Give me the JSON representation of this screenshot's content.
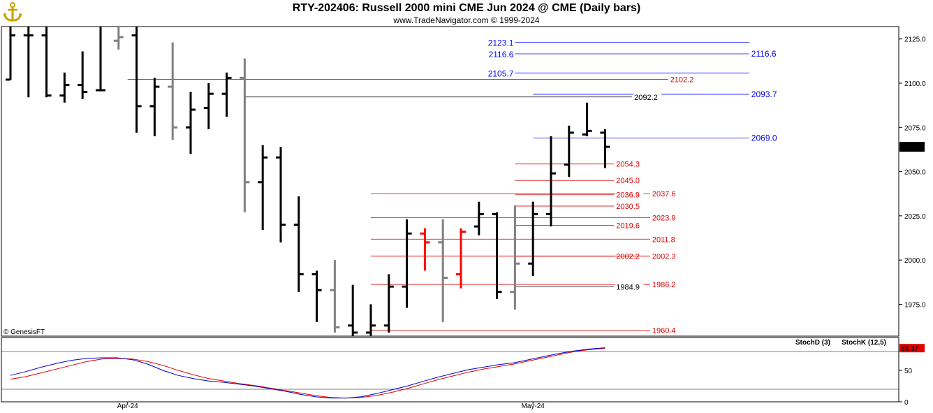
{
  "header": {
    "title": "RTY-202406:  Russell 2000 mini CME Jun 2024 @ CME  (Daily bars)",
    "subtitle": "www.TradeNavigator.com © 1999-2024"
  },
  "colors": {
    "black_bar": "#000000",
    "gray_bar": "#808080",
    "red_bar": "#ff0000",
    "blue_level": "#0000ff",
    "red_level": "#e00000",
    "stoch_d": "#e00000",
    "stoch_k": "#0000cc"
  },
  "chart_data": [
    {
      "type": "ohlc",
      "title": "RTY-202406:  Russell 2000 mini CME Jun 2024 @ CME  (Daily bars)",
      "copyright": "© GenesisFT",
      "x_labels": [
        {
          "label": "Apr-24",
          "bar": 6.5
        },
        {
          "label": "May-24",
          "bar": 29
        }
      ],
      "ylim": [
        1957,
        2132
      ],
      "y_ticks": [
        "1975.0",
        "2000.0",
        "2025.0",
        "2050.0",
        "2075.0",
        "2100.0",
        "2125.0"
      ],
      "last_price": "2064.0",
      "bars": [
        {
          "o": 2102,
          "h": 2135,
          "l": 2102,
          "c": 2127,
          "color": "black"
        },
        {
          "o": 2127,
          "h": 2135,
          "l": 2092,
          "c": 2127,
          "color": "black"
        },
        {
          "o": 2127,
          "h": 2135,
          "l": 2092,
          "c": 2093,
          "color": "black"
        },
        {
          "o": 2093,
          "h": 2106,
          "l": 2089,
          "c": 2099,
          "color": "black"
        },
        {
          "o": 2099,
          "h": 2118,
          "l": 2091,
          "c": 2095,
          "color": "black"
        },
        {
          "o": 2096,
          "h": 2135,
          "l": 2096,
          "c": 2096,
          "color": "black"
        },
        {
          "o": 2124,
          "h": 2135,
          "l": 2119,
          "c": 2126,
          "color": "gray"
        },
        {
          "o": 2127,
          "h": 2135,
          "l": 2072,
          "c": 2087,
          "color": "black"
        },
        {
          "o": 2087,
          "h": 2103,
          "l": 2070,
          "c": 2098,
          "color": "black"
        },
        {
          "o": 2098,
          "h": 2123,
          "l": 2068,
          "c": 2075,
          "color": "gray"
        },
        {
          "o": 2075,
          "h": 2095,
          "l": 2060,
          "c": 2085,
          "color": "black"
        },
        {
          "o": 2086,
          "h": 2100,
          "l": 2074,
          "c": 2094,
          "color": "black"
        },
        {
          "o": 2094,
          "h": 2106,
          "l": 2081,
          "c": 2103,
          "color": "black"
        },
        {
          "o": 2103,
          "h": 2114,
          "l": 2027,
          "c": 2044,
          "color": "gray"
        },
        {
          "o": 2044,
          "h": 2065,
          "l": 2017,
          "c": 2058,
          "color": "black"
        },
        {
          "o": 2058,
          "h": 2064,
          "l": 2010,
          "c": 2020,
          "color": "black"
        },
        {
          "o": 2020,
          "h": 2036,
          "l": 1982,
          "c": 1992,
          "color": "black"
        },
        {
          "o": 1992,
          "h": 1994,
          "l": 1965,
          "c": 1983,
          "color": "black"
        },
        {
          "o": 1983,
          "h": 2000,
          "l": 1959,
          "c": 1962,
          "color": "gray"
        },
        {
          "o": 1963,
          "h": 1986,
          "l": 1950,
          "c": 1959,
          "color": "black"
        },
        {
          "o": 1959,
          "h": 1975,
          "l": 1950,
          "c": 1963,
          "color": "black"
        },
        {
          "o": 1963,
          "h": 1992,
          "l": 1959,
          "c": 1985,
          "color": "black"
        },
        {
          "o": 1985,
          "h": 2023,
          "l": 1973,
          "c": 2015,
          "color": "black"
        },
        {
          "o": 2015,
          "h": 2018,
          "l": 1994,
          "c": 2010,
          "color": "red"
        },
        {
          "o": 2010,
          "h": 2023,
          "l": 1965,
          "c": 1990,
          "color": "gray"
        },
        {
          "o": 1992,
          "h": 2018,
          "l": 1984,
          "c": 2016,
          "color": "red"
        },
        {
          "o": 2019,
          "h": 2033,
          "l": 2014,
          "c": 2026,
          "color": "black"
        },
        {
          "o": 2026,
          "h": 2027,
          "l": 1978,
          "c": 1982,
          "color": "black"
        },
        {
          "o": 1982,
          "h": 2031,
          "l": 1972,
          "c": 1998,
          "color": "gray"
        },
        {
          "o": 1998,
          "h": 2033,
          "l": 1991,
          "c": 2026,
          "color": "black"
        },
        {
          "o": 2026,
          "h": 2070,
          "l": 2019,
          "c": 2049,
          "color": "black"
        },
        {
          "o": 2054,
          "h": 2076,
          "l": 2047,
          "c": 2072,
          "color": "black"
        },
        {
          "o": 2071,
          "h": 2089,
          "l": 2070,
          "c": 2073,
          "color": "black"
        },
        {
          "o": 2072,
          "h": 2074,
          "l": 2052,
          "c": 2064,
          "color": "black"
        }
      ],
      "levels": [
        {
          "label": "2123.1",
          "value": 2123.1,
          "color": "blue",
          "x0": 28,
          "x1": 41,
          "label_side": "left",
          "label_bar": 28
        },
        {
          "label": "2116.6",
          "value": 2116.6,
          "color": "blue",
          "x0": 28,
          "x1": 41,
          "label_side": "both",
          "label_bar": 28
        },
        {
          "label": "2105.7",
          "value": 2105.7,
          "color": "blue",
          "x0": 28,
          "x1": 41,
          "label_side": "left",
          "label_bar": 28
        },
        {
          "label": "2102.2",
          "value": 2102.2,
          "color": "red",
          "x0": 6.5,
          "x1": 36.5,
          "label_side": "right",
          "label_bar": 36.5
        },
        {
          "label": "2093.7",
          "value": 2093.7,
          "color": "blue",
          "x0": 29,
          "x1": 41,
          "label_side": "right",
          "label_bar": 41
        },
        {
          "label": "2092.2",
          "value": 2092.2,
          "color": "black",
          "x0": 13,
          "x1": 34.5,
          "label_side": "right",
          "label_bar": 34.5
        },
        {
          "label": "2069.0",
          "value": 2069.0,
          "color": "blue",
          "x0": 29,
          "x1": 41,
          "label_side": "right",
          "label_bar": 41
        },
        {
          "label": "2054.3",
          "value": 2054.3,
          "color": "red",
          "x0": 28,
          "x1": 33.5,
          "label_side": "right",
          "label_bar": 33.5
        },
        {
          "label": "2045.0",
          "value": 2045.0,
          "color": "red",
          "x0": 28,
          "x1": 33.5,
          "label_side": "right",
          "label_bar": 33.5
        },
        {
          "label": "2037.6",
          "value": 2037.6,
          "color": "red",
          "x0": 20,
          "x1": 35.5,
          "label_side": "right",
          "label_bar": 35.5
        },
        {
          "label": "2036.9",
          "value": 2036.9,
          "color": "red",
          "x0": 28,
          "x1": 33.5,
          "label_side": "right",
          "label_bar": 33.5
        },
        {
          "label": "2030.5",
          "value": 2030.5,
          "color": "red",
          "x0": 28,
          "x1": 33.5,
          "label_side": "right",
          "label_bar": 33.5
        },
        {
          "label": "2023.9",
          "value": 2023.9,
          "color": "red",
          "x0": 20,
          "x1": 35.5,
          "label_side": "right",
          "label_bar": 35.5
        },
        {
          "label": "2019.6",
          "value": 2019.6,
          "color": "red",
          "x0": 28,
          "x1": 33.5,
          "label_side": "right",
          "label_bar": 33.5
        },
        {
          "label": "2011.8",
          "value": 2011.8,
          "color": "red",
          "x0": 20,
          "x1": 35.5,
          "label_side": "right",
          "label_bar": 35.5
        },
        {
          "label": "2002.2",
          "value": 2002.2,
          "color": "red",
          "x0": 28,
          "x1": 33.5,
          "label_side": "right",
          "label_bar": 33.5
        },
        {
          "label": "2002.3",
          "value": 2002.3,
          "color": "red",
          "x0": 20,
          "x1": 35.5,
          "label_side": "right",
          "label_bar": 35.5
        },
        {
          "label": "1986.2",
          "value": 1986.2,
          "color": "red",
          "x0": 20,
          "x1": 35.5,
          "label_side": "right",
          "label_bar": 35.5
        },
        {
          "label": "1984.9",
          "value": 1984.9,
          "color": "black",
          "x0": 28,
          "x1": 33.5,
          "label_side": "right",
          "label_bar": 33.5
        },
        {
          "label": "1960.4",
          "value": 1960.4,
          "color": "red",
          "x0": 20,
          "x1": 35.5,
          "label_side": "right",
          "label_bar": 35.5
        }
      ]
    },
    {
      "type": "line",
      "title": "",
      "legend": [
        "StochD (3)",
        "StochK (12,5)"
      ],
      "y_ticks": [
        "0",
        "50"
      ],
      "ylim": [
        0,
        100
      ],
      "guides": [
        20,
        80
      ],
      "last_value": "85.37",
      "series": [
        {
          "name": "StochD (3)",
          "color": "red",
          "values": [
            36,
            40,
            46,
            52,
            58,
            64,
            68,
            69,
            68,
            64,
            58,
            50,
            43,
            37,
            33,
            29,
            26,
            22,
            18,
            14,
            10,
            7,
            6,
            7,
            10,
            15,
            21,
            28,
            35,
            41,
            47,
            52,
            56,
            60,
            65,
            70,
            75,
            80,
            83,
            85
          ]
        },
        {
          "name": "StochK (12,5)",
          "color": "blue",
          "values": [
            42,
            48,
            55,
            61,
            66,
            69,
            70,
            70,
            67,
            60,
            50,
            42,
            37,
            33,
            31,
            28,
            25,
            21,
            17,
            12,
            8,
            6,
            6,
            8,
            13,
            19,
            25,
            32,
            39,
            45,
            51,
            55,
            59,
            62,
            67,
            72,
            77,
            81,
            84,
            86
          ]
        }
      ]
    }
  ]
}
